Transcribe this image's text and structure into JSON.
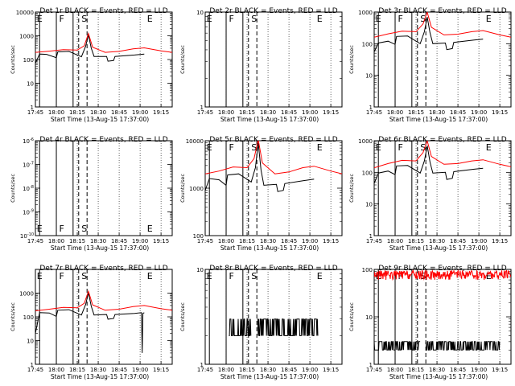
{
  "figure": {
    "x_ticks": [
      "17:45",
      "18:00",
      "18:15",
      "18:30",
      "18:45",
      "19:00",
      "19:15"
    ],
    "xlabel": "Start Time (13-Aug-15 17:37:00)",
    "ylabel": "Counts/sec",
    "line_markers": [
      "E",
      "F",
      "S",
      "E"
    ]
  },
  "chart_data": [
    {
      "type": "line",
      "title": "Det 1r BLACK = Events, RED = LLD",
      "xlabel": "Start Time (13-Aug-15 17:37:00)",
      "ylabel": "Counts/sec",
      "y_scale": "log",
      "ylim": [
        1,
        10000
      ],
      "y_ticks": [
        "1",
        "10",
        "100",
        "1000",
        "10000"
      ],
      "x_ticks": [
        "17:45",
        "18:00",
        "18:15",
        "18:30",
        "18:45",
        "19:00",
        "19:15"
      ],
      "series": [
        {
          "color": "#000000",
          "points": [
            [
              0,
              70
            ],
            [
              3,
              170
            ],
            [
              8,
              165
            ],
            [
              15,
              120
            ],
            [
              16,
              210
            ],
            [
              24,
              220
            ],
            [
              33,
              130
            ],
            [
              36,
              360
            ],
            [
              38,
              1100
            ],
            [
              40,
              300
            ],
            [
              42,
              135
            ],
            [
              51,
              135
            ],
            [
              52,
              85
            ],
            [
              56,
              90
            ],
            [
              57,
              135
            ],
            [
              71,
              155
            ],
            [
              78,
              170
            ]
          ]
        },
        {
          "color": "#ff0000",
          "points": [
            [
              0,
              200
            ],
            [
              10,
              225
            ],
            [
              20,
              260
            ],
            [
              30,
              250
            ],
            [
              35,
              380
            ],
            [
              38,
              1250
            ],
            [
              41,
              330
            ],
            [
              50,
              200
            ],
            [
              60,
              220
            ],
            [
              70,
              280
            ],
            [
              78,
              310
            ],
            [
              90,
              230
            ],
            [
              98,
              200
            ]
          ]
        }
      ],
      "marker_lines": [
        "E",
        "F",
        "S",
        "E"
      ]
    },
    {
      "type": "line",
      "title": "Det 2r BLACK = Events, RED = LLD",
      "xlabel": "Start Time (13-Aug-15 17:37:00)",
      "ylabel": "Counts/sec",
      "y_scale": "log",
      "ylim": [
        1,
        10
      ],
      "y_ticks": [
        "1",
        "10"
      ],
      "x_ticks": [
        "17:45",
        "18:00",
        "18:15",
        "18:30",
        "18:45",
        "19:00",
        "19:15"
      ],
      "series": [],
      "marker_lines": [
        "E",
        "F",
        "S",
        "E"
      ]
    },
    {
      "type": "line",
      "title": "Det 3r BLACK = Events, RED = LLD",
      "xlabel": "Start Time (13-Aug-15 17:37:00)",
      "ylabel": "Counts/sec",
      "y_scale": "log",
      "ylim": [
        1,
        1000
      ],
      "y_ticks": [
        "1",
        "10",
        "100",
        "1000"
      ],
      "x_ticks": [
        "17:45",
        "18:00",
        "18:15",
        "18:30",
        "18:45",
        "19:00",
        "19:15"
      ],
      "series": [
        {
          "color": "#000000",
          "points": [
            [
              0,
              55
            ],
            [
              3,
              105
            ],
            [
              10,
              120
            ],
            [
              15,
              95
            ],
            [
              16,
              170
            ],
            [
              24,
              175
            ],
            [
              33,
              100
            ],
            [
              36,
              240
            ],
            [
              38,
              700
            ],
            [
              40,
              220
            ],
            [
              42,
              100
            ],
            [
              51,
              105
            ],
            [
              52,
              65
            ],
            [
              56,
              70
            ],
            [
              57,
              110
            ],
            [
              71,
              130
            ],
            [
              78,
              140
            ]
          ]
        },
        {
          "color": "#ff0000",
          "points": [
            [
              0,
              160
            ],
            [
              10,
              205
            ],
            [
              20,
              250
            ],
            [
              30,
              240
            ],
            [
              35,
              420
            ],
            [
              38,
              1000
            ],
            [
              41,
              330
            ],
            [
              50,
              190
            ],
            [
              60,
              200
            ],
            [
              70,
              240
            ],
            [
              78,
              260
            ],
            [
              90,
              190
            ],
            [
              98,
              160
            ]
          ]
        }
      ],
      "marker_lines": [
        "E",
        "F",
        "S",
        "E"
      ]
    },
    {
      "type": "line",
      "title": "Det 4r BLACK = Events, RED = LLD",
      "xlabel": "Start Time (13-Aug-15 17:37:00)",
      "ylabel": "Counts/sec",
      "y_scale": "log",
      "ylim": [
        1e-10,
        1e-06
      ],
      "y_ticks": [
        "10^-10",
        "10^-9",
        "10^-8",
        "10^-7",
        "10^-6"
      ],
      "x_ticks": [
        "17:45",
        "18:00",
        "18:15",
        "18:30",
        "18:45",
        "19:00",
        "19:15"
      ],
      "series": [],
      "marker_lines": [
        "E",
        "F",
        "S",
        "E"
      ]
    },
    {
      "type": "line",
      "title": "Det 5r BLACK = Events, RED = LLD",
      "xlabel": "Start Time (13-Aug-15 17:37:00)",
      "ylabel": "Counts/sec",
      "y_scale": "log",
      "ylim": [
        100,
        10000
      ],
      "y_ticks": [
        "100",
        "1000",
        "10000"
      ],
      "x_ticks": [
        "17:45",
        "18:00",
        "18:15",
        "18:30",
        "18:45",
        "19:00",
        "19:15"
      ],
      "series": [
        {
          "color": "#000000",
          "points": [
            [
              0,
              900
            ],
            [
              3,
              1600
            ],
            [
              10,
              1500
            ],
            [
              15,
              1150
            ],
            [
              16,
              1900
            ],
            [
              24,
              2000
            ],
            [
              33,
              1350
            ],
            [
              36,
              2700
            ],
            [
              38,
              9000
            ],
            [
              40,
              2400
            ],
            [
              42,
              1150
            ],
            [
              51,
              1200
            ],
            [
              52,
              850
            ],
            [
              56,
              900
            ],
            [
              57,
              1250
            ],
            [
              71,
              1450
            ],
            [
              78,
              1550
            ]
          ]
        },
        {
          "color": "#ff0000",
          "points": [
            [
              0,
              2000
            ],
            [
              10,
              2300
            ],
            [
              20,
              2800
            ],
            [
              30,
              2700
            ],
            [
              35,
              4200
            ],
            [
              38,
              10500
            ],
            [
              41,
              3400
            ],
            [
              50,
              2000
            ],
            [
              60,
              2200
            ],
            [
              70,
              2700
            ],
            [
              78,
              2900
            ],
            [
              90,
              2300
            ],
            [
              98,
              2000
            ]
          ]
        }
      ],
      "marker_lines": [
        "E",
        "F",
        "S",
        "E"
      ]
    },
    {
      "type": "line",
      "title": "Det 6r BLACK = Events, RED = LLD",
      "xlabel": "Start Time (13-Aug-15 17:37:00)",
      "ylabel": "Counts/sec",
      "y_scale": "log",
      "ylim": [
        1,
        1000
      ],
      "y_ticks": [
        "1",
        "10",
        "100",
        "1000"
      ],
      "x_ticks": [
        "17:45",
        "18:00",
        "18:15",
        "18:30",
        "18:45",
        "19:00",
        "19:15"
      ],
      "series": [
        {
          "color": "#000000",
          "points": [
            [
              0,
              45
            ],
            [
              3,
              95
            ],
            [
              10,
              110
            ],
            [
              15,
              85
            ],
            [
              16,
              160
            ],
            [
              24,
              165
            ],
            [
              33,
              95
            ],
            [
              36,
              230
            ],
            [
              38,
              700
            ],
            [
              40,
              210
            ],
            [
              42,
              95
            ],
            [
              51,
              100
            ],
            [
              52,
              60
            ],
            [
              56,
              65
            ],
            [
              57,
              105
            ],
            [
              71,
              125
            ],
            [
              78,
              135
            ]
          ]
        },
        {
          "color": "#ff0000",
          "points": [
            [
              0,
              140
            ],
            [
              10,
              190
            ],
            [
              20,
              240
            ],
            [
              30,
              230
            ],
            [
              35,
              420
            ],
            [
              38,
              1000
            ],
            [
              41,
              320
            ],
            [
              50,
              180
            ],
            [
              60,
              190
            ],
            [
              70,
              230
            ],
            [
              78,
              250
            ],
            [
              90,
              180
            ],
            [
              98,
              150
            ]
          ]
        }
      ],
      "marker_lines": [
        "E",
        "F",
        "S",
        "E"
      ]
    },
    {
      "type": "line",
      "title": "Det 7r BLACK = Events, RED = LLD",
      "xlabel": "Start Time (13-Aug-15 17:37:00)",
      "ylabel": "Counts/sec",
      "y_scale": "log",
      "ylim": [
        1,
        10000
      ],
      "y_ticks": [
        "1",
        "10",
        "100",
        "1000"
      ],
      "x_ticks": [
        "17:45",
        "18:00",
        "18:15",
        "18:30",
        "18:45",
        "19:00",
        "19:15"
      ],
      "series": [
        {
          "color": "#000000",
          "points": [
            [
              0,
              20
            ],
            [
              3,
              150
            ],
            [
              10,
              145
            ],
            [
              15,
              105
            ],
            [
              16,
              190
            ],
            [
              24,
              200
            ],
            [
              33,
              120
            ],
            [
              36,
              330
            ],
            [
              38,
              1050
            ],
            [
              40,
              280
            ],
            [
              42,
              120
            ],
            [
              51,
              125
            ],
            [
              52,
              80
            ],
            [
              56,
              85
            ],
            [
              57,
              125
            ],
            [
              71,
              140
            ],
            [
              76,
              150
            ],
            [
              76.5,
              3
            ],
            [
              77,
              140
            ],
            [
              78,
              150
            ]
          ]
        },
        {
          "color": "#ff0000",
          "points": [
            [
              0,
              180
            ],
            [
              10,
              210
            ],
            [
              20,
              250
            ],
            [
              30,
              240
            ],
            [
              35,
              370
            ],
            [
              38,
              1200
            ],
            [
              41,
              320
            ],
            [
              50,
              190
            ],
            [
              60,
              210
            ],
            [
              70,
              270
            ],
            [
              78,
              300
            ],
            [
              90,
              220
            ],
            [
              98,
              190
            ]
          ]
        }
      ],
      "marker_lines": [
        "E",
        "F",
        "S",
        "E"
      ]
    },
    {
      "type": "line",
      "title": "Det 8r BLACK = Events, RED = LLD",
      "xlabel": "Start Time (13-Aug-15 17:37:00)",
      "ylabel": "Counts/sec",
      "y_scale": "log",
      "ylim": [
        1,
        10
      ],
      "y_ticks": [
        "1",
        "10"
      ],
      "x_ticks": [
        "17:45",
        "18:00",
        "18:15",
        "18:30",
        "18:45",
        "19:00",
        "19:15"
      ],
      "series": [
        {
          "color": "#000000",
          "noisy": true,
          "x_range": [
            17,
            81
          ],
          "levels": [
            2,
            3
          ],
          "gaps": [
            [
              33,
              37
            ]
          ]
        }
      ],
      "marker_lines": [
        "E",
        "F",
        "S",
        "E"
      ]
    },
    {
      "type": "line",
      "title": "Det 9r BLACK = Events, RED = LLD",
      "xlabel": "Start Time (13-Aug-15 17:37:00)",
      "ylabel": "Counts/sec",
      "y_scale": "log",
      "ylim": [
        1,
        100
      ],
      "y_ticks": [
        "1",
        "10",
        "100"
      ],
      "x_ticks": [
        "17:45",
        "18:00",
        "18:15",
        "18:30",
        "18:45",
        "19:00",
        "19:15"
      ],
      "series": [
        {
          "color": "#000000",
          "noisy": true,
          "x_range": [
            0,
            90
          ],
          "levels": [
            2,
            3
          ],
          "gaps": [
            [
              33,
              37
            ]
          ]
        },
        {
          "color": "#ff0000",
          "noisy": true,
          "x_range": [
            0,
            98
          ],
          "levels": [
            60,
            95
          ]
        }
      ],
      "marker_lines": [
        "E",
        "F",
        "S",
        "E"
      ]
    }
  ]
}
